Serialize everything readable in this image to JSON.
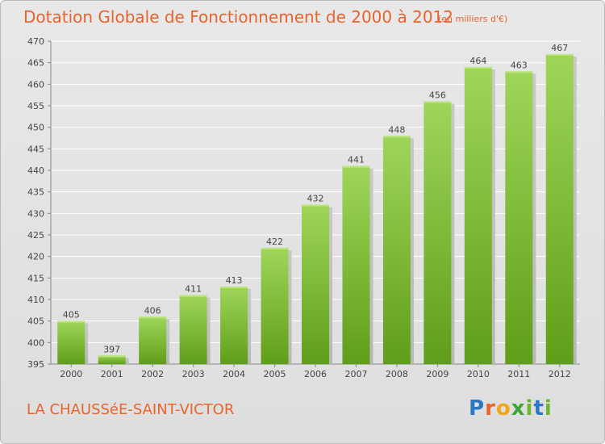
{
  "header": {
    "title": "Dotation Globale de Fonctionnement de 2000 à 2012",
    "unit_note": "(en milliers d'€)"
  },
  "footer": {
    "commune": "LA CHAUSSéE-SAINT-VICTOR",
    "logo": {
      "p": "P",
      "r": "r",
      "o": "o",
      "x": "x",
      "i": "i",
      "t": "t",
      "i2": "i"
    }
  },
  "colors": {
    "title": "#e8642d",
    "bar_top": "#9fd65a",
    "bar_bottom": "#5f9e18",
    "grid": "#ffffff"
  },
  "chart_data": {
    "type": "bar",
    "categories": [
      "2000",
      "2001",
      "2002",
      "2003",
      "2004",
      "2005",
      "2006",
      "2007",
      "2008",
      "2009",
      "2010",
      "2011",
      "2012"
    ],
    "values": [
      405,
      397,
      406,
      411,
      413,
      422,
      432,
      441,
      448,
      456,
      464,
      463,
      467
    ],
    "data_labels": [
      "405",
      "397",
      "406",
      "411",
      "413",
      "422",
      "432",
      "441",
      "448",
      "456",
      "464",
      "463",
      "467"
    ],
    "yticks": [
      "395",
      "400",
      "405",
      "410",
      "415",
      "420",
      "425",
      "430",
      "435",
      "440",
      "445",
      "450",
      "455",
      "460",
      "465",
      "470"
    ],
    "ylim": [
      395,
      470
    ],
    "grid": true
  }
}
